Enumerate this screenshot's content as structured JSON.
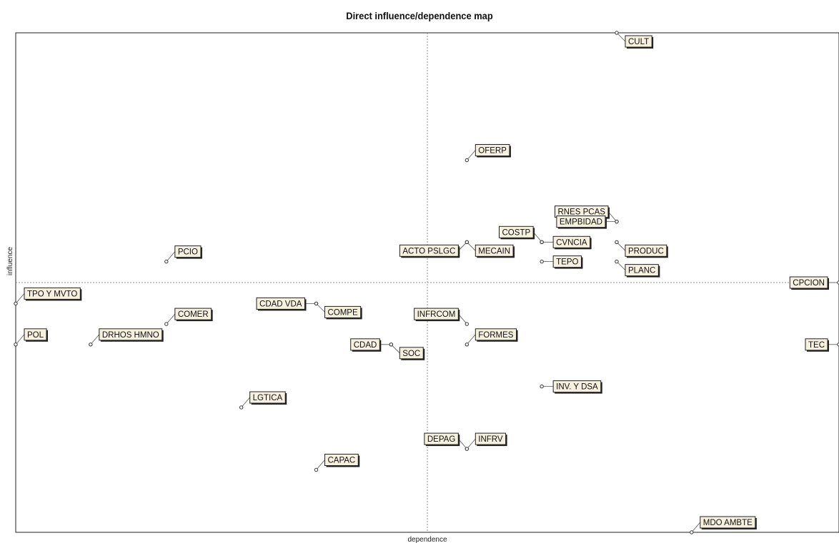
{
  "chart_data": {
    "type": "scatter",
    "title": "Direct influence/dependence map",
    "xlabel": "dependence",
    "ylabel": "influence",
    "xlim": [
      0,
      100
    ],
    "ylim": [
      0,
      100
    ],
    "x_ref": 50,
    "y_ref": 50,
    "grid": false,
    "points": [
      {
        "label": "CULT",
        "x": 73.0,
        "y": 100.0,
        "dir": "se"
      },
      {
        "label": "OFERP",
        "x": 54.8,
        "y": 74.5,
        "dir": "ne"
      },
      {
        "label": "RNES PCAS",
        "x": 73.0,
        "y": 62.2,
        "dir": "nw"
      },
      {
        "label": "EMPBIDAD",
        "x": 73.0,
        "y": 62.2,
        "dir": "w"
      },
      {
        "label": "COSTP",
        "x": 63.9,
        "y": 58.1,
        "dir": "nw"
      },
      {
        "label": "CVNCIA",
        "x": 63.9,
        "y": 58.1,
        "dir": "e"
      },
      {
        "label": "PRODUC",
        "x": 73.0,
        "y": 58.1,
        "dir": "se"
      },
      {
        "label": "ACTO PSLGC",
        "x": 54.8,
        "y": 58.1,
        "dir": "sw"
      },
      {
        "label": "MECAIN",
        "x": 54.8,
        "y": 58.1,
        "dir": "se"
      },
      {
        "label": "TEPO",
        "x": 63.9,
        "y": 54.2,
        "dir": "e"
      },
      {
        "label": "PLANC",
        "x": 73.0,
        "y": 54.2,
        "dir": "se"
      },
      {
        "label": "PCIO",
        "x": 18.3,
        "y": 54.2,
        "dir": "ne"
      },
      {
        "label": "CPCION",
        "x": 100.0,
        "y": 50.0,
        "dir": "w"
      },
      {
        "label": "TPO Y MVTO",
        "x": 0.0,
        "y": 45.8,
        "dir": "ne"
      },
      {
        "label": "COMER",
        "x": 18.3,
        "y": 41.7,
        "dir": "ne"
      },
      {
        "label": "CDAD VDA",
        "x": 36.5,
        "y": 45.8,
        "dir": "w"
      },
      {
        "label": "COMPE",
        "x": 36.5,
        "y": 45.8,
        "dir": "se"
      },
      {
        "label": "INFRCOM",
        "x": 54.8,
        "y": 41.7,
        "dir": "nw"
      },
      {
        "label": "POL",
        "x": 0.0,
        "y": 37.6,
        "dir": "ne"
      },
      {
        "label": "DRHOS HMNO",
        "x": 9.1,
        "y": 37.6,
        "dir": "ne"
      },
      {
        "label": "FORMES",
        "x": 54.8,
        "y": 37.6,
        "dir": "ne"
      },
      {
        "label": "CDAD",
        "x": 45.6,
        "y": 37.6,
        "dir": "w"
      },
      {
        "label": "SOC",
        "x": 45.6,
        "y": 37.6,
        "dir": "se"
      },
      {
        "label": "TEC",
        "x": 100.0,
        "y": 37.6,
        "dir": "w"
      },
      {
        "label": "LGTICA",
        "x": 27.4,
        "y": 25.0,
        "dir": "ne"
      },
      {
        "label": "INV. Y DSA",
        "x": 63.9,
        "y": 29.2,
        "dir": "e"
      },
      {
        "label": "DEPAG",
        "x": 54.8,
        "y": 16.7,
        "dir": "nw"
      },
      {
        "label": "INFRV",
        "x": 54.8,
        "y": 16.7,
        "dir": "ne"
      },
      {
        "label": "CAPAC",
        "x": 36.5,
        "y": 12.5,
        "dir": "ne"
      },
      {
        "label": "MDO AMBTE",
        "x": 82.1,
        "y": 0.0,
        "dir": "ne"
      }
    ]
  }
}
